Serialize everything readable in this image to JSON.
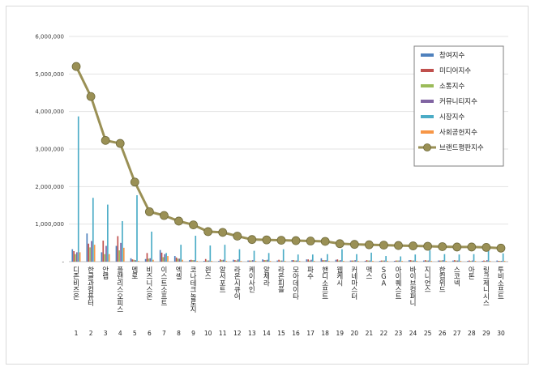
{
  "chart_data": {
    "type": "bar",
    "title": "",
    "xlabel": "",
    "ylabel": "",
    "ylim": [
      0,
      6000000
    ],
    "yticks": [
      "-",
      "1,000,000",
      "2,000,000",
      "3,000,000",
      "4,000,000",
      "5,000,000",
      "6,000,000"
    ],
    "grid": true,
    "legend_position": "top-right",
    "categories": [
      "디존비즈온",
      "한글과컴퓨터",
      "안랩",
      "플랜리스오피스",
      "멤로",
      "비즈니스온",
      "이스트소프트",
      "엑셀",
      "코나테크놀로지",
      "윈스",
      "알서포트",
      "라온시큐어",
      "케이사인",
      "알체라",
      "라온피플",
      "모아데이타",
      "파수",
      "핸디소프트",
      "웹케시",
      "커네마스터",
      "맥스",
      "SGA",
      "아이퀘스트",
      "바이브컴퍼니",
      "지니언스",
      "한컴위드",
      "스코넥",
      "아톤",
      "링크제니시스",
      "투비소프트"
    ],
    "ranks": [
      "1",
      "2",
      "3",
      "4",
      "5",
      "6",
      "7",
      "8",
      "9",
      "10",
      "11",
      "12",
      "13",
      "14",
      "15",
      "16",
      "17",
      "18",
      "19",
      "20",
      "21",
      "22",
      "23",
      "24",
      "25",
      "26",
      "27",
      "28",
      "29",
      "30"
    ],
    "series": [
      {
        "name": "참여지수",
        "kind": "bar",
        "color": "#4f81bd",
        "values": [
          330000,
          750000,
          250000,
          420000,
          90000,
          70000,
          310000,
          150000,
          40000,
          20000,
          20000,
          50000,
          30000,
          60000,
          30000,
          40000,
          60000,
          90000,
          50000,
          30000,
          20000,
          20000,
          20000,
          40000,
          30000,
          30000,
          30000,
          20000,
          20000,
          30000
        ]
      },
      {
        "name": "미디어지수",
        "kind": "bar",
        "color": "#c0504d",
        "values": [
          280000,
          480000,
          560000,
          680000,
          60000,
          230000,
          240000,
          110000,
          50000,
          70000,
          60000,
          40000,
          30000,
          40000,
          50000,
          40000,
          60000,
          40000,
          60000,
          30000,
          40000,
          30000,
          30000,
          40000,
          40000,
          30000,
          40000,
          30000,
          30000,
          20000
        ]
      },
      {
        "name": "소통지수",
        "kind": "bar",
        "color": "#9bbb59",
        "values": [
          200000,
          380000,
          200000,
          300000,
          50000,
          80000,
          120000,
          80000,
          40000,
          30000,
          40000,
          30000,
          30000,
          40000,
          30000,
          30000,
          30000,
          40000,
          30000,
          30000,
          30000,
          30000,
          30000,
          30000,
          30000,
          30000,
          30000,
          20000,
          20000,
          20000
        ]
      },
      {
        "name": "커뮤니티지수",
        "kind": "bar",
        "color": "#8064a2",
        "values": [
          250000,
          550000,
          420000,
          500000,
          40000,
          90000,
          200000,
          80000,
          40000,
          30000,
          50000,
          60000,
          40000,
          50000,
          30000,
          30000,
          50000,
          40000,
          40000,
          40000,
          30000,
          30000,
          30000,
          30000,
          30000,
          40000,
          30000,
          30000,
          40000,
          20000
        ]
      },
      {
        "name": "시장지수",
        "kind": "bar",
        "color": "#4bacc6",
        "values": [
          3870000,
          1700000,
          1520000,
          1080000,
          1770000,
          800000,
          230000,
          450000,
          690000,
          430000,
          450000,
          330000,
          290000,
          230000,
          330000,
          190000,
          190000,
          200000,
          330000,
          200000,
          240000,
          150000,
          140000,
          190000,
          300000,
          200000,
          190000,
          200000,
          280000,
          220000
        ]
      },
      {
        "name": "사회공헌지수",
        "kind": "bar",
        "color": "#f79646",
        "values": [
          250000,
          450000,
          200000,
          370000,
          20000,
          50000,
          150000,
          50000,
          20000,
          20000,
          20000,
          20000,
          20000,
          20000,
          20000,
          20000,
          20000,
          20000,
          20000,
          20000,
          20000,
          20000,
          20000,
          20000,
          20000,
          20000,
          20000,
          20000,
          20000,
          20000
        ]
      },
      {
        "name": "브랜드평판지수",
        "kind": "line",
        "color": "#9a9055",
        "values": [
          5200000,
          4400000,
          3230000,
          3150000,
          2120000,
          1330000,
          1230000,
          1080000,
          980000,
          800000,
          780000,
          680000,
          590000,
          580000,
          570000,
          560000,
          550000,
          540000,
          480000,
          460000,
          450000,
          440000,
          430000,
          420000,
          410000,
          400000,
          390000,
          390000,
          380000,
          360000
        ]
      }
    ]
  }
}
